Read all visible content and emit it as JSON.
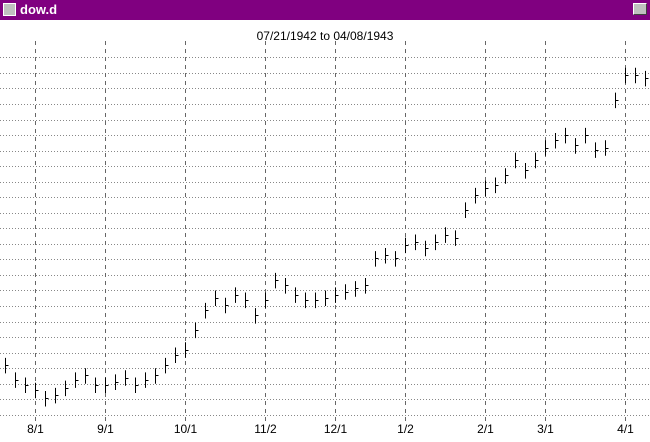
{
  "window": {
    "title": "dow.d"
  },
  "chart_data": {
    "type": "ohlc",
    "title": "07/21/1942 to 04/08/1943",
    "categories": [
      null,
      null,
      null,
      "8/1",
      null,
      null,
      null,
      null,
      null,
      null,
      "9/1",
      null,
      null,
      null,
      null,
      null,
      null,
      null,
      "10/1",
      null,
      null,
      null,
      null,
      null,
      null,
      null,
      "11/2",
      null,
      null,
      null,
      null,
      null,
      null,
      "12/1",
      null,
      null,
      null,
      null,
      null,
      null,
      "1/2",
      null,
      null,
      null,
      null,
      null,
      null,
      null,
      "2/1",
      null,
      null,
      null,
      null,
      null,
      "3/1",
      null,
      null,
      null,
      null,
      null,
      null,
      null,
      "4/1",
      null,
      null
    ],
    "high": [
      108.0,
      106.6,
      106.1,
      105.6,
      104.8,
      105.1,
      105.8,
      106.6,
      107.0,
      106.1,
      106.1,
      106.4,
      106.8,
      106.1,
      106.6,
      107.0,
      108.0,
      109.0,
      109.5,
      111.4,
      113.3,
      114.5,
      113.8,
      114.8,
      114.3,
      112.8,
      114.3,
      116.2,
      115.7,
      114.8,
      114.3,
      114.3,
      114.5,
      114.8,
      115.1,
      115.4,
      115.7,
      118.3,
      118.6,
      118.3,
      119.6,
      119.9,
      119.3,
      119.9,
      120.6,
      120.3,
      123.0,
      124.4,
      125.1,
      125.4,
      126.3,
      127.8,
      126.8,
      127.8,
      129.0,
      129.7,
      130.2,
      129.2,
      130.2,
      128.8,
      129.0,
      133.6,
      136.0,
      136.0,
      135.7
    ],
    "low": [
      106.5,
      105.1,
      104.6,
      104.1,
      103.3,
      103.6,
      104.3,
      105.1,
      105.5,
      104.6,
      104.6,
      104.9,
      105.3,
      104.6,
      105.1,
      105.5,
      106.5,
      107.5,
      108.0,
      109.9,
      111.8,
      113.0,
      112.3,
      113.3,
      112.8,
      111.3,
      112.8,
      114.7,
      114.2,
      113.3,
      112.8,
      112.8,
      113.0,
      113.3,
      113.6,
      113.9,
      114.2,
      116.8,
      117.1,
      116.8,
      118.1,
      118.4,
      117.8,
      118.4,
      119.1,
      118.8,
      121.5,
      122.9,
      123.6,
      123.9,
      124.8,
      126.3,
      125.3,
      126.3,
      127.5,
      128.2,
      128.7,
      127.7,
      128.7,
      127.3,
      127.5,
      132.1,
      134.5,
      134.5,
      134.2
    ],
    "close": [
      107.3,
      105.9,
      105.4,
      104.9,
      104.1,
      104.4,
      105.1,
      105.9,
      106.3,
      105.4,
      105.4,
      105.7,
      106.1,
      105.4,
      105.9,
      106.3,
      107.3,
      108.3,
      108.8,
      110.7,
      112.6,
      113.8,
      113.1,
      114.1,
      113.6,
      112.1,
      113.6,
      115.5,
      115.0,
      114.1,
      113.6,
      113.6,
      113.8,
      114.1,
      114.4,
      114.7,
      115.0,
      117.6,
      117.9,
      117.6,
      118.9,
      119.2,
      118.6,
      119.2,
      119.9,
      119.6,
      122.3,
      123.7,
      124.4,
      124.7,
      125.6,
      127.1,
      126.1,
      127.1,
      128.3,
      129.0,
      129.5,
      128.5,
      129.5,
      128.1,
      128.3,
      132.9,
      135.3,
      135.3,
      135.0
    ],
    "color": "#000000",
    "ylim": [
      102,
      138
    ],
    "ygrid": [
      102.5,
      104,
      105.5,
      107,
      108.5,
      110,
      111.5,
      113,
      114.5,
      116,
      117.5,
      119,
      120.5,
      122,
      123.5,
      125,
      126.5,
      128,
      129.5,
      131,
      132.5,
      134,
      135.5,
      137
    ],
    "grid": true
  }
}
